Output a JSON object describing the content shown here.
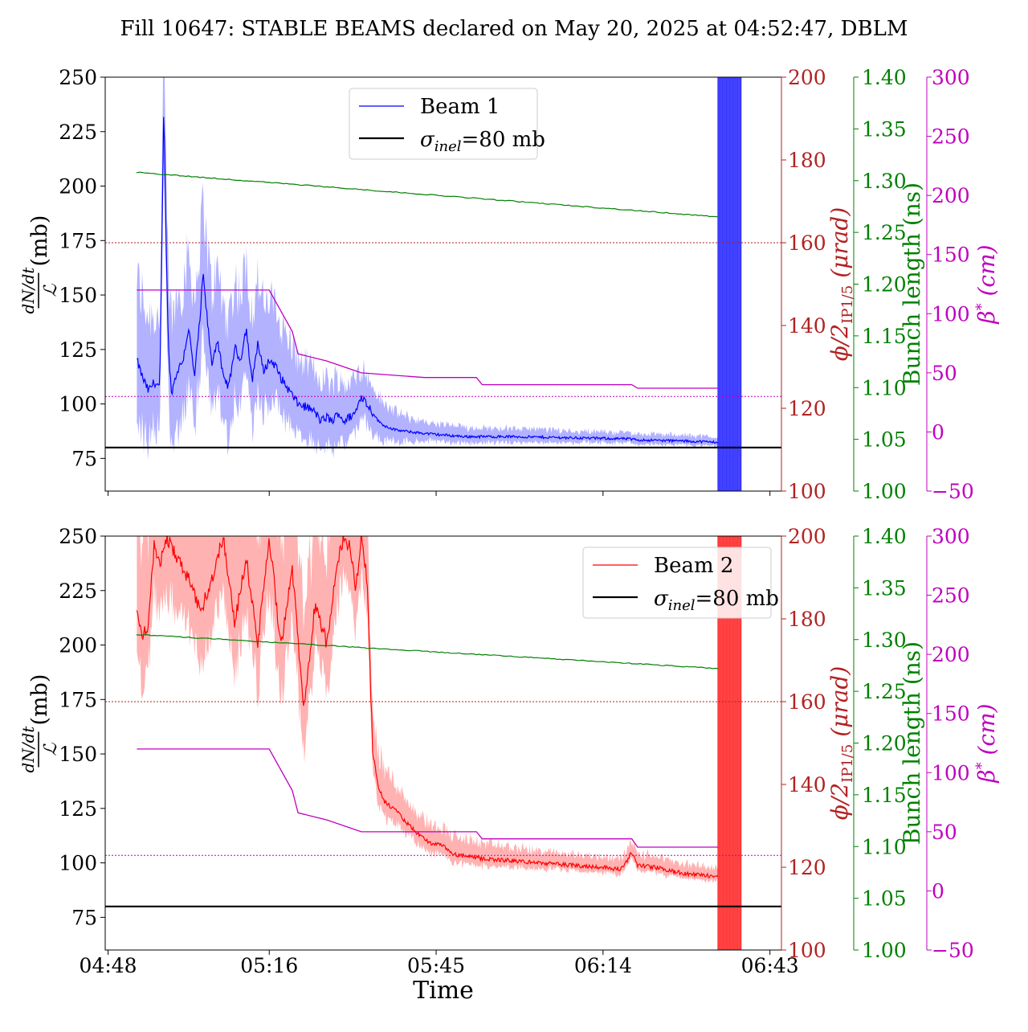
{
  "chart_data": {
    "type": "line",
    "title": "Fill 10647: STABLE BEAMS declared on May 20, 2025 at 04:52:47, DBLM",
    "xlabel": "Time",
    "x_ticks": [
      "04:48",
      "05:16",
      "05:45",
      "06:14",
      "06:43"
    ],
    "x_tick_minutes": [
      0,
      28,
      57,
      86,
      115
    ],
    "x_range_minutes": [
      -0.5,
      117
    ],
    "axes": {
      "left": {
        "label_parts": {
          "frac_top": "dN/dt",
          "frac_bottom": "ℒ",
          "unit": "(mb)"
        },
        "range": [
          60,
          250
        ],
        "ticks": [
          75,
          100,
          125,
          150,
          175,
          200,
          225,
          250
        ]
      },
      "crossing": {
        "label_parts": {
          "phi": "ϕ/2",
          "sub": "IP1/5",
          "unit": "(μrad)"
        },
        "range": [
          100,
          200
        ],
        "ticks": [
          100,
          120,
          140,
          160,
          180,
          200
        ],
        "color": "#b22222"
      },
      "bunch": {
        "label": "Bunch length (ns)",
        "range": [
          1.0,
          1.4
        ],
        "ticks": [
          "1.00",
          "1.05",
          "1.10",
          "1.15",
          "1.20",
          "1.25",
          "1.30",
          "1.35",
          "1.40"
        ],
        "color": "#008000"
      },
      "beta": {
        "label_parts": {
          "beta": "β",
          "sup": "*",
          "unit": "(cm)"
        },
        "range": [
          -50,
          300
        ],
        "ticks": [
          "−50",
          "0",
          "50",
          "100",
          "150",
          "200",
          "250",
          "300"
        ],
        "color": "#c000c0"
      }
    },
    "panels": [
      {
        "legend_label": "Beam 1",
        "legend_position": "upper-center",
        "color": "#0000ff",
        "band_color": "#aaaaff",
        "sigma_label": "σ_inel=80 mb",
        "sigma_inel": 80,
        "crossing_angle_urad": 160,
        "beta_ref_cm": 30,
        "bunch_length_ns": {
          "start": [
            5,
            1.308
          ],
          "end": [
            106,
            1.265
          ]
        },
        "beta_star_cm": [
          [
            5,
            120
          ],
          [
            28,
            120
          ],
          [
            32,
            85
          ],
          [
            33,
            66
          ],
          [
            38,
            60
          ],
          [
            41,
            55
          ],
          [
            44,
            50
          ],
          [
            55,
            46
          ],
          [
            64,
            46
          ],
          [
            65,
            40
          ],
          [
            91,
            40
          ],
          [
            92,
            37
          ],
          [
            106,
            37
          ]
        ],
        "dn_dt_mb": [
          [
            5,
            120
          ],
          [
            6,
            112
          ],
          [
            7,
            106
          ],
          [
            8,
            110
          ],
          [
            9,
            108
          ],
          [
            9.7,
            240
          ],
          [
            10,
            185
          ],
          [
            10.5,
            125
          ],
          [
            11,
            105
          ],
          [
            12,
            115
          ],
          [
            13,
            120
          ],
          [
            14,
            135
          ],
          [
            15,
            112
          ],
          [
            16,
            140
          ],
          [
            16.5,
            160
          ],
          [
            17,
            145
          ],
          [
            18,
            118
          ],
          [
            19,
            130
          ],
          [
            20,
            112
          ],
          [
            21,
            108
          ],
          [
            22,
            126
          ],
          [
            23,
            120
          ],
          [
            24,
            135
          ],
          [
            25,
            110
          ],
          [
            26,
            128
          ],
          [
            27,
            115
          ],
          [
            28,
            120
          ],
          [
            29,
            118
          ],
          [
            30,
            112
          ],
          [
            31,
            108
          ],
          [
            32,
            104
          ],
          [
            33,
            100
          ],
          [
            35,
            98
          ],
          [
            36,
            96
          ],
          [
            37,
            92
          ],
          [
            38,
            94
          ],
          [
            39,
            92
          ],
          [
            40,
            96
          ],
          [
            41,
            92
          ],
          [
            42,
            94
          ],
          [
            43,
            96
          ],
          [
            44,
            104
          ],
          [
            45,
            100
          ],
          [
            46,
            96
          ],
          [
            47,
            92
          ],
          [
            48,
            90
          ],
          [
            50,
            88
          ],
          [
            53,
            87
          ],
          [
            57,
            86
          ],
          [
            62,
            85
          ],
          [
            70,
            85
          ],
          [
            80,
            84.5
          ],
          [
            90,
            84
          ],
          [
            92,
            83.5
          ],
          [
            100,
            83
          ],
          [
            105,
            82.5
          ],
          [
            106,
            82.5
          ]
        ],
        "band_width_mb": [
          [
            5,
            38
          ],
          [
            9,
            30
          ],
          [
            12,
            35
          ],
          [
            15,
            35
          ],
          [
            20,
            32
          ],
          [
            25,
            30
          ],
          [
            28,
            28
          ],
          [
            33,
            20
          ],
          [
            38,
            18
          ],
          [
            42,
            16
          ],
          [
            46,
            12
          ],
          [
            50,
            8
          ],
          [
            55,
            5
          ],
          [
            65,
            4
          ],
          [
            85,
            3
          ],
          [
            106,
            2.5
          ]
        ],
        "spike_region_minutes": [
          106,
          110
        ]
      },
      {
        "legend_label": "Beam 2",
        "legend_position": "upper-right",
        "color": "#ff0000",
        "band_color": "#ffaaaa",
        "sigma_label": "σ_inel=80 mb",
        "sigma_inel": 80,
        "crossing_angle_urad": 160,
        "beta_ref_cm": 30,
        "bunch_length_ns": {
          "start": [
            5,
            1.305
          ],
          "end": [
            106,
            1.272
          ]
        },
        "beta_star_cm": [
          [
            5,
            120
          ],
          [
            28,
            120
          ],
          [
            32,
            85
          ],
          [
            33,
            66
          ],
          [
            38,
            60
          ],
          [
            41,
            55
          ],
          [
            44,
            50
          ],
          [
            55,
            50
          ],
          [
            64,
            50
          ],
          [
            65,
            44
          ],
          [
            91,
            44
          ],
          [
            92,
            37
          ],
          [
            106,
            37
          ]
        ],
        "dn_dt_mb": [
          [
            5,
            215
          ],
          [
            6,
            205
          ],
          [
            7,
            210
          ],
          [
            8,
            245
          ],
          [
            9,
            235
          ],
          [
            10,
            250
          ],
          [
            12,
            240
          ],
          [
            14,
            230
          ],
          [
            16,
            215
          ],
          [
            18,
            230
          ],
          [
            20,
            250
          ],
          [
            22,
            210
          ],
          [
            24,
            240
          ],
          [
            26,
            200
          ],
          [
            28,
            250
          ],
          [
            30,
            200
          ],
          [
            32,
            235
          ],
          [
            34,
            170
          ],
          [
            36,
            220
          ],
          [
            38,
            200
          ],
          [
            40,
            240
          ],
          [
            41,
            250
          ],
          [
            42,
            245
          ],
          [
            43,
            225
          ],
          [
            44,
            250
          ],
          [
            45,
            230
          ],
          [
            46,
            150
          ],
          [
            47,
            135
          ],
          [
            48,
            128
          ],
          [
            50,
            124
          ],
          [
            52,
            118
          ],
          [
            54,
            113
          ],
          [
            56,
            109
          ],
          [
            58,
            108
          ],
          [
            60,
            104
          ],
          [
            62,
            103
          ],
          [
            65,
            102
          ],
          [
            70,
            101
          ],
          [
            75,
            100
          ],
          [
            80,
            99
          ],
          [
            86,
            98
          ],
          [
            89,
            97
          ],
          [
            90,
            100
          ],
          [
            91,
            105
          ],
          [
            92,
            99
          ],
          [
            95,
            98
          ],
          [
            100,
            95
          ],
          [
            105,
            94
          ],
          [
            106,
            94
          ]
        ],
        "band_width_mb": [
          [
            5,
            45
          ],
          [
            10,
            45
          ],
          [
            20,
            45
          ],
          [
            30,
            45
          ],
          [
            40,
            40
          ],
          [
            44,
            35
          ],
          [
            46,
            18
          ],
          [
            50,
            12
          ],
          [
            55,
            9
          ],
          [
            60,
            8
          ],
          [
            70,
            6
          ],
          [
            80,
            5
          ],
          [
            90,
            5
          ],
          [
            95,
            5
          ],
          [
            106,
            4
          ]
        ],
        "spike_region_minutes": [
          106,
          110
        ]
      }
    ]
  }
}
